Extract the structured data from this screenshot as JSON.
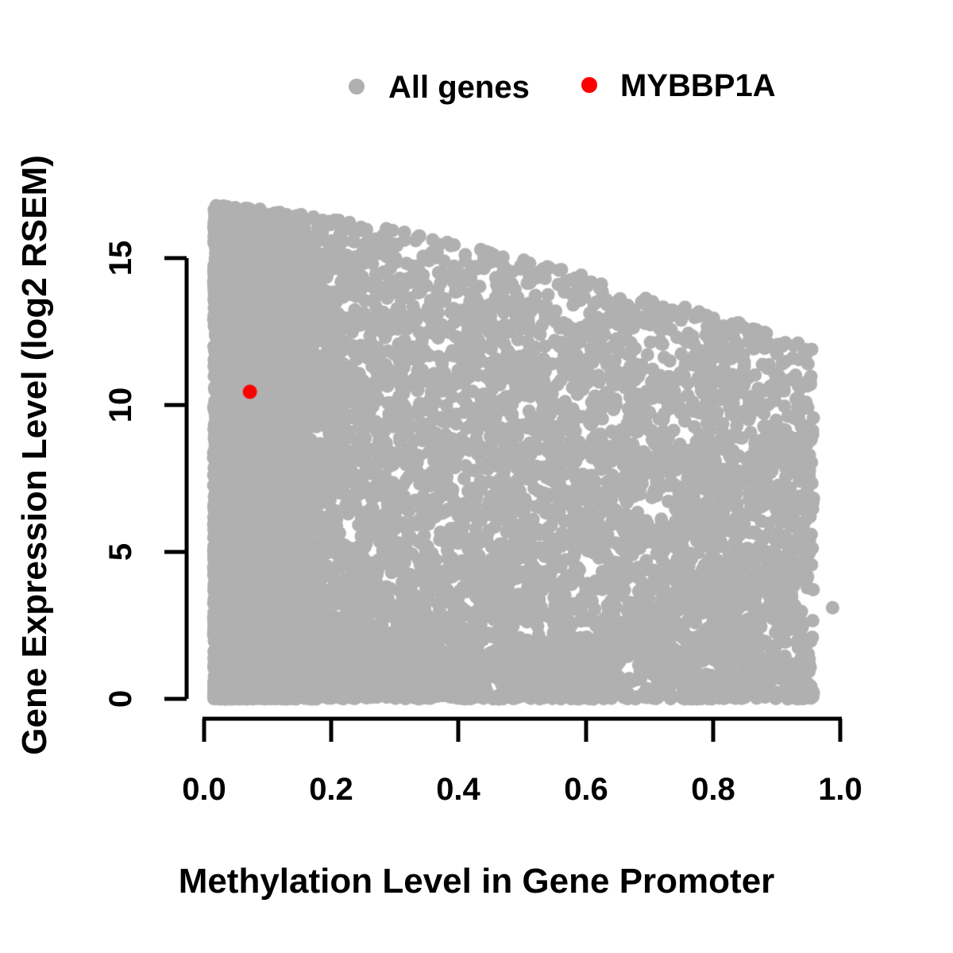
{
  "chart_data": {
    "type": "scatter",
    "xlabel": "Methylation Level in Gene Promoter",
    "ylabel": "Gene Expression Level (log2 RSEM)",
    "xlim": [
      0.0,
      1.0
    ],
    "ylim": [
      0,
      15
    ],
    "x_ticks": [
      0.0,
      0.2,
      0.4,
      0.6,
      0.8,
      1.0
    ],
    "x_tick_labels": [
      "0.0",
      "0.2",
      "0.4",
      "0.6",
      "0.8",
      "1.0"
    ],
    "y_ticks": [
      0,
      5,
      10,
      15
    ],
    "y_tick_labels": [
      "0",
      "5",
      "10",
      "15"
    ],
    "grid": "off",
    "legend": {
      "position": "top-center",
      "items": [
        {
          "label": "All genes",
          "color": "#b0b0b0"
        },
        {
          "label": "MYBBP1A",
          "color": "#ff0000"
        }
      ]
    },
    "series": [
      {
        "name": "All genes",
        "color": "#b0b0b0",
        "marker_radius_px": 8.5,
        "description": "Dense cloud of ~12000 genes; methylation 0.02-0.96, expression 0-16.8; maximum expression declines as promoter methylation rises; very dense column at methylation < 0.2 and dense band near expression 0",
        "cloud_model": {
          "seed": 42,
          "n": 12000,
          "x_min": 0.015,
          "x_max": 0.958,
          "left_mix": 0.45,
          "left_sigma": 0.075,
          "x_pow": 1.2,
          "env_a": 16.8,
          "env_b": 5.2,
          "env_pow": 1.5,
          "y_pow": 1.4
        },
        "outlier_points": [
          [
            0.988,
            3.1
          ]
        ]
      },
      {
        "name": "MYBBP1A",
        "color": "#ff0000",
        "marker_radius_px": 9,
        "points": [
          [
            0.072,
            10.45
          ]
        ]
      }
    ]
  }
}
